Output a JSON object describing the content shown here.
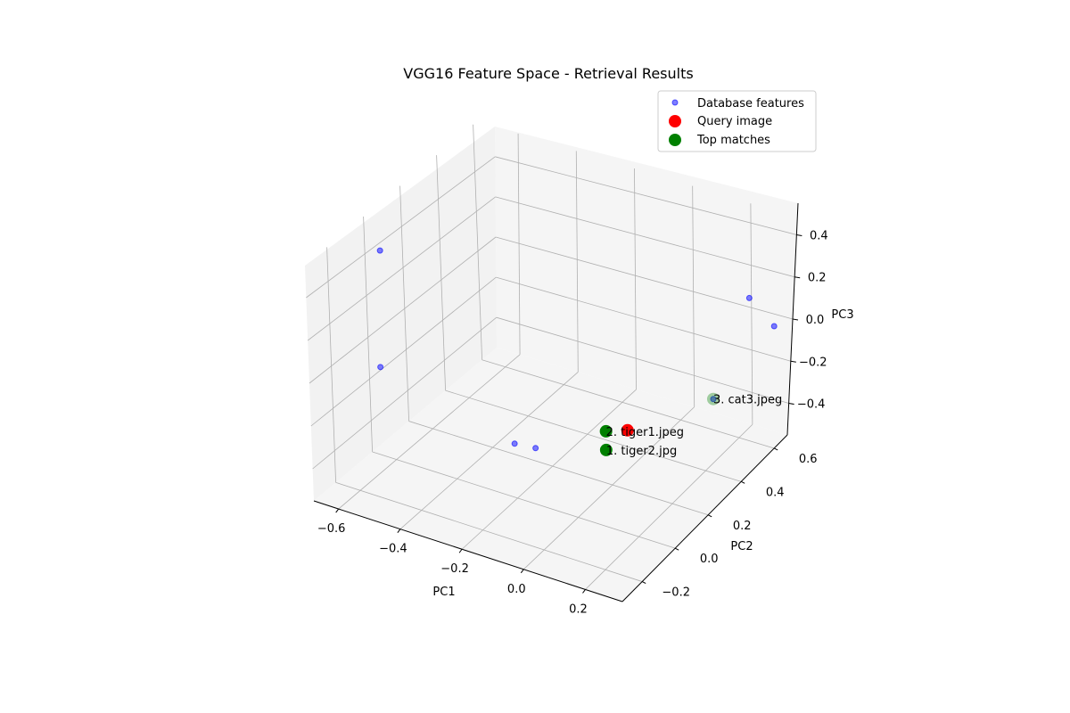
{
  "chart_data": {
    "type": "scatter",
    "projection": "3d",
    "title": "VGG16 Feature Space - Retrieval Results",
    "xlabel": "PC1",
    "ylabel": "PC2",
    "zlabel": "PC3",
    "xticks": [
      "−0.6",
      "−0.4",
      "−0.2",
      "0.0",
      "0.2"
    ],
    "yticks": [
      "−0.2",
      "0.0",
      "0.2",
      "0.4",
      "0.6"
    ],
    "zticks": [
      "−0.4",
      "−0.2",
      "0.0",
      "0.2",
      "0.4"
    ],
    "grid": true,
    "legend_position": "top-right",
    "series": [
      {
        "name": "Database features",
        "color": "#0000ff",
        "marker": "circle-small",
        "points": [
          {
            "x": -0.62,
            "y": -0.05,
            "z": 0.52
          },
          {
            "x": -0.52,
            "y": -0.22,
            "z": 0.12
          },
          {
            "x": -0.05,
            "y": -0.28,
            "z": 0.02
          },
          {
            "x": 0.0,
            "y": -0.25,
            "z": 0.0
          },
          {
            "x": 0.05,
            "y": 0.05,
            "z": -0.12
          },
          {
            "x": 0.08,
            "y": 0.0,
            "z": -0.16
          },
          {
            "x": 0.25,
            "y": 0.5,
            "z": 0.3
          },
          {
            "x": 0.33,
            "y": 0.5,
            "z": 0.2
          },
          {
            "x": 0.25,
            "y": 0.3,
            "z": -0.05
          }
        ]
      },
      {
        "name": "Query image",
        "color": "#ff0000",
        "marker": "circle-large",
        "points": [
          {
            "x": 0.12,
            "y": 0.05,
            "z": -0.08
          }
        ]
      },
      {
        "name": "Top matches",
        "color": "#008000",
        "marker": "circle-large",
        "points": [
          {
            "x": 0.08,
            "y": 0.0,
            "z": -0.16,
            "label": "1. tiger2.jpg"
          },
          {
            "x": 0.05,
            "y": 0.05,
            "z": -0.12,
            "label": "2. tiger1.jpeg"
          },
          {
            "x": 0.25,
            "y": 0.3,
            "z": -0.05,
            "label": "3. cat3.jpeg"
          }
        ]
      }
    ]
  }
}
